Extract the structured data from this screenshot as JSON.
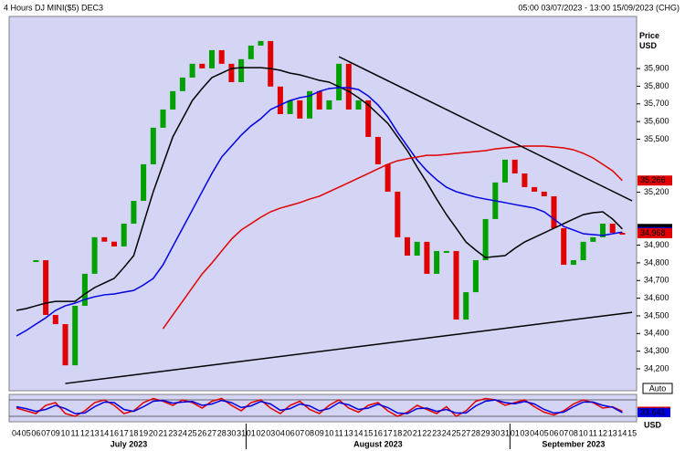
{
  "chart_data": {
    "type": "candlestick",
    "title": "4 Hours DJ MINI($5) DEC3",
    "subtitle": "05:00 03/07/2023 - 13:00 15/09/2023 (CHG)",
    "y_label": "Price USD",
    "categories": [
      "04",
      "05",
      "06",
      "07",
      "09",
      "10",
      "11",
      "12",
      "13",
      "14",
      "16",
      "17",
      "18",
      "19",
      "20",
      "21",
      "23",
      "24",
      "25",
      "26",
      "27",
      "28",
      "30",
      "31",
      "01",
      "02",
      "03",
      "04",
      "06",
      "07",
      "08",
      "09",
      "10",
      "11",
      "13",
      "14",
      "15",
      "16",
      "17",
      "18",
      "20",
      "21",
      "22",
      "23",
      "24",
      "25",
      "27",
      "28",
      "29",
      "30",
      "31",
      "01",
      "03",
      "04",
      "05",
      "06",
      "07",
      "08",
      "10",
      "11",
      "12",
      "13",
      "14",
      "15"
    ],
    "months": [
      "July 2023",
      "August 2023",
      "September 2023"
    ],
    "up_color": "#00a000",
    "down_color": "#e00000",
    "close": [
      null,
      null,
      34815,
      34505,
      34453,
      34220,
      34557,
      34738,
      34945,
      34920,
      34893,
      35022,
      35151,
      35358,
      35565,
      35668,
      35772,
      35849,
      35927,
      35901,
      36004,
      35927,
      35823,
      35953,
      36030,
      36056,
      35798,
      35642,
      35720,
      35617,
      35772,
      35668,
      35720,
      35927,
      35668,
      35720,
      35513,
      35358,
      35203,
      34945,
      34841,
      34919,
      34738,
      34867,
      34867,
      34479,
      34634,
      34815,
      35048,
      35255,
      35384,
      35306,
      35229,
      35203,
      35177,
      34996,
      34789,
      34815,
      34919,
      34945,
      35022,
      34970,
      34968,
      null
    ],
    "series": [
      {
        "color": "#000000",
        "values": [
          34531,
          34541,
          34557,
          34572,
          34582,
          34582,
          34582,
          34624,
          34660,
          34686,
          34712,
          34774,
          34841,
          35022,
          35203,
          35358,
          35513,
          35616,
          35719,
          35787,
          35849,
          35874,
          35900,
          35905,
          35905,
          35905,
          35900,
          35890,
          35874,
          35864,
          35849,
          35833,
          35823,
          35797,
          35771,
          35735,
          35694,
          35642,
          35590,
          35513,
          35435,
          35342,
          35254,
          35161,
          35073,
          34996,
          34918,
          34872,
          34830,
          34836,
          34841,
          34882,
          34918,
          34944,
          34970,
          34996,
          35022,
          35048,
          35073,
          35084,
          35089,
          35048,
          34992,
          null
        ]
      },
      {
        "color": "#0000e0",
        "values": [
          34386,
          34417,
          34453,
          34489,
          34531,
          34557,
          34572,
          34593,
          34608,
          34619,
          34624,
          34634,
          34644,
          34675,
          34712,
          34789,
          34893,
          34996,
          35099,
          35203,
          35306,
          35399,
          35461,
          35523,
          35575,
          35616,
          35668,
          35694,
          35719,
          35735,
          35745,
          35771,
          35787,
          35792,
          35792,
          35781,
          35745,
          35694,
          35626,
          35539,
          35461,
          35383,
          35321,
          35270,
          35228,
          35203,
          35187,
          35172,
          35161,
          35151,
          35141,
          35130,
          35120,
          35110,
          35089,
          35048,
          35006,
          34986,
          34965,
          34960,
          34955,
          34965,
          34974,
          null
        ]
      },
      {
        "color": "#e00000",
        "values": [
          null,
          null,
          null,
          null,
          null,
          null,
          null,
          null,
          null,
          null,
          null,
          null,
          null,
          null,
          null,
          34427,
          34505,
          34582,
          34660,
          34737,
          34799,
          34867,
          34934,
          34986,
          35022,
          35058,
          35089,
          35110,
          35125,
          35141,
          35161,
          35177,
          35203,
          35228,
          35254,
          35280,
          35306,
          35332,
          35358,
          35378,
          35389,
          35399,
          35409,
          35409,
          35414,
          35420,
          35425,
          35430,
          35435,
          35445,
          35451,
          35456,
          35461,
          35461,
          35461,
          35456,
          35451,
          35440,
          35420,
          35394,
          35358,
          35321,
          35266,
          null
        ]
      }
    ],
    "trendlines": [
      {
        "x": [
          33,
          63
        ],
        "y": [
          35967,
          35151
        ]
      },
      {
        "x": [
          5,
          63
        ],
        "y": [
          34117,
          34520
        ]
      }
    ],
    "ylim": [
      34076,
      36195
    ],
    "yticks": [
      {
        "value": 35900,
        "label": "35,900"
      },
      {
        "value": 35800,
        "label": "35,800"
      },
      {
        "value": 35700,
        "label": "35,700"
      },
      {
        "value": 35600,
        "label": "35,600"
      },
      {
        "value": 35500,
        "label": "35,500"
      },
      {
        "value": 35200,
        "label": "35,200"
      },
      {
        "value": 34900,
        "label": "34,900"
      },
      {
        "value": 34800,
        "label": "34,800"
      },
      {
        "value": 34700,
        "label": "34,700"
      },
      {
        "value": 34600,
        "label": "34,600"
      },
      {
        "value": 34500,
        "label": "34,500"
      },
      {
        "value": 34400,
        "label": "34,400"
      },
      {
        "value": 34300,
        "label": "34,300"
      },
      {
        "value": 34200,
        "label": "34,200"
      }
    ],
    "price_tags": [
      {
        "value": 35266,
        "label": "35,266",
        "color": "#e00000"
      },
      {
        "value": 34992,
        "label": "34,992",
        "color": "#000000"
      },
      {
        "value": 34974,
        "label": "34,974",
        "color": "#0000e0"
      },
      {
        "value": 34968,
        "label": "34,968",
        "color": "#e00000"
      }
    ],
    "oscillator": {
      "scale_label": "Auto",
      "unit_label": "USD",
      "ylim": [
        0,
        100
      ],
      "levels": [
        20,
        80
      ],
      "series": [
        {
          "color": "#e00000",
          "values": [
            50,
            40,
            30,
            60,
            70,
            30,
            20,
            40,
            70,
            80,
            60,
            30,
            40,
            70,
            85,
            75,
            60,
            80,
            70,
            50,
            75,
            85,
            60,
            40,
            70,
            80,
            50,
            30,
            60,
            75,
            45,
            30,
            60,
            80,
            50,
            35,
            60,
            70,
            40,
            20,
            35,
            60,
            45,
            30,
            55,
            20,
            40,
            75,
            85,
            80,
            60,
            70,
            80,
            55,
            35,
            25,
            40,
            65,
            80,
            70,
            50,
            55,
            38.34,
            null
          ]
        },
        {
          "color": "#0000e0",
          "values": [
            55,
            48,
            38,
            45,
            60,
            48,
            30,
            32,
            55,
            72,
            70,
            45,
            38,
            55,
            75,
            78,
            68,
            72,
            74,
            60,
            65,
            78,
            70,
            52,
            58,
            74,
            65,
            42,
            48,
            65,
            58,
            40,
            48,
            70,
            62,
            45,
            50,
            64,
            52,
            32,
            30,
            48,
            50,
            38,
            45,
            32,
            32,
            58,
            75,
            80,
            70,
            66,
            74,
            65,
            45,
            32,
            35,
            55,
            72,
            72,
            60,
            53,
            33.641,
            null
          ]
        }
      ],
      "tags": [
        {
          "value": 38.34,
          "label": "38.340",
          "color": "#e00000"
        },
        {
          "value": 33.641,
          "label": "33.641",
          "color": "#0000e0"
        }
      ]
    }
  }
}
